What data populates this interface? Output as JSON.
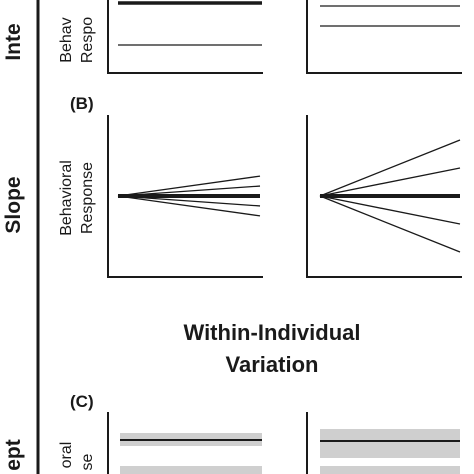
{
  "row_labels": {
    "intercept_top": "Inte",
    "slope": "Slope",
    "intercept_bottom": "ept"
  },
  "axis_labels": {
    "top_line1": "Behav",
    "top_line2": "Respo",
    "slope_line1": "Behavioral",
    "slope_line2": "Response",
    "bottom_line1": "oral",
    "bottom_line2": "se"
  },
  "panel_letters": {
    "b": "(B)",
    "c": "(C)"
  },
  "heading": {
    "line1": "Within-Individual",
    "line2": "Variation"
  },
  "colors": {
    "ink": "#1a1a1a",
    "band": "#cfcfcf"
  },
  "panels": {
    "slope_left": {
      "mean_slope": 0,
      "individual_slopes": [
        0.14,
        0.07,
        0.0,
        -0.07,
        -0.14
      ]
    },
    "slope_right": {
      "mean_slope": 0,
      "individual_slopes": [
        0.4,
        0.2,
        -0.2,
        -0.4
      ]
    }
  }
}
